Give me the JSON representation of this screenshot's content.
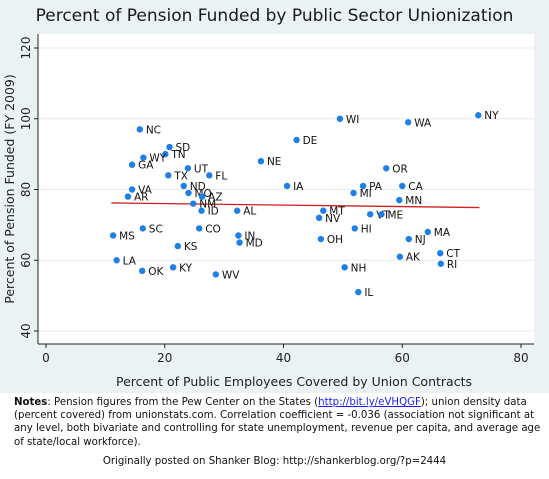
{
  "chart_data": {
    "type": "scatter",
    "title": "Percent of Pension Funded by Public Sector Unionization",
    "xlabel": "Percent of Public Employees Covered by Union Contracts",
    "ylabel": "Percent of Pension Funded (FY 2009)",
    "xlim": [
      0,
      80
    ],
    "ylim": [
      40,
      120
    ],
    "x_ticks": [
      0,
      20,
      40,
      60,
      80
    ],
    "y_ticks": [
      40,
      60,
      80,
      100,
      120
    ],
    "grid": "horizontal",
    "points": [
      {
        "label": "NY",
        "x": 72.8,
        "y": 101
      },
      {
        "label": "WI",
        "x": 49.5,
        "y": 100
      },
      {
        "label": "WA",
        "x": 61.0,
        "y": 99
      },
      {
        "label": "NC",
        "x": 15.8,
        "y": 97
      },
      {
        "label": "DE",
        "x": 42.2,
        "y": 94
      },
      {
        "label": "SD",
        "x": 20.8,
        "y": 92
      },
      {
        "label": "TN",
        "x": 20.1,
        "y": 90
      },
      {
        "label": "WY",
        "x": 16.4,
        "y": 89
      },
      {
        "label": "NE",
        "x": 36.2,
        "y": 88
      },
      {
        "label": "GA",
        "x": 14.5,
        "y": 87
      },
      {
        "label": "UT",
        "x": 23.9,
        "y": 86
      },
      {
        "label": "OR",
        "x": 57.3,
        "y": 86
      },
      {
        "label": "TX",
        "x": 20.6,
        "y": 84
      },
      {
        "label": "FL",
        "x": 27.5,
        "y": 84
      },
      {
        "label": "ND",
        "x": 23.2,
        "y": 81
      },
      {
        "label": "IA",
        "x": 40.6,
        "y": 81
      },
      {
        "label": "PA",
        "x": 53.4,
        "y": 81
      },
      {
        "label": "CA",
        "x": 60.0,
        "y": 81
      },
      {
        "label": "VA",
        "x": 14.5,
        "y": 80
      },
      {
        "label": "MO",
        "x": 24.0,
        "y": 79
      },
      {
        "label": "MI",
        "x": 51.8,
        "y": 79
      },
      {
        "label": "AR",
        "x": 13.8,
        "y": 78
      },
      {
        "label": "AZ",
        "x": 26.3,
        "y": 78
      },
      {
        "label": "MN",
        "x": 59.5,
        "y": 77
      },
      {
        "label": "NM",
        "x": 24.8,
        "y": 76
      },
      {
        "label": "ID",
        "x": 26.2,
        "y": 74
      },
      {
        "label": "AL",
        "x": 32.2,
        "y": 74
      },
      {
        "label": "MT",
        "x": 46.7,
        "y": 74
      },
      {
        "label": "VT",
        "x": 54.6,
        "y": 73
      },
      {
        "label": "ME",
        "x": 56.5,
        "y": 73
      },
      {
        "label": "NV",
        "x": 46.0,
        "y": 72
      },
      {
        "label": "SC",
        "x": 16.3,
        "y": 69
      },
      {
        "label": "CO",
        "x": 25.8,
        "y": 69
      },
      {
        "label": "HI",
        "x": 52.0,
        "y": 69
      },
      {
        "label": "MA",
        "x": 64.3,
        "y": 68
      },
      {
        "label": "MS",
        "x": 11.3,
        "y": 67
      },
      {
        "label": "IN",
        "x": 32.4,
        "y": 67
      },
      {
        "label": "OH",
        "x": 46.3,
        "y": 66
      },
      {
        "label": "NJ",
        "x": 61.1,
        "y": 66
      },
      {
        "label": "MD",
        "x": 32.6,
        "y": 65
      },
      {
        "label": "KS",
        "x": 22.2,
        "y": 64
      },
      {
        "label": "CT",
        "x": 66.4,
        "y": 62
      },
      {
        "label": "AK",
        "x": 59.6,
        "y": 61
      },
      {
        "label": "LA",
        "x": 11.9,
        "y": 60
      },
      {
        "label": "RI",
        "x": 66.5,
        "y": 59
      },
      {
        "label": "KY",
        "x": 21.4,
        "y": 58
      },
      {
        "label": "NH",
        "x": 50.3,
        "y": 58
      },
      {
        "label": "OK",
        "x": 16.2,
        "y": 57
      },
      {
        "label": "WV",
        "x": 28.6,
        "y": 56
      },
      {
        "label": "IL",
        "x": 52.6,
        "y": 51
      }
    ],
    "fit_line": {
      "x": [
        11,
        73
      ],
      "y": [
        76.2,
        74.9
      ]
    },
    "colors": {
      "points": "#1e7fe8",
      "fit_line": "#d11f1f",
      "plot_bg": "#ffffff",
      "frame_bg": "#eaf2f3",
      "grid": "#e4ecec"
    }
  },
  "notes": {
    "heading": "Notes",
    "part1": ": Pension figures from the Pew Center on the States (",
    "link": "http://bit.ly/eVHQGF",
    "part2": "); union density data (percent covered) from unionstats.com. Correlation coefficient = -0.036 (association not significant at any level, both bivariate and controlling for state unemployment, revenue per capita, and average age of state/local workforce)."
  },
  "footer": "Originally posted on Shanker Blog: http://shankerblog.org/?p=2444"
}
